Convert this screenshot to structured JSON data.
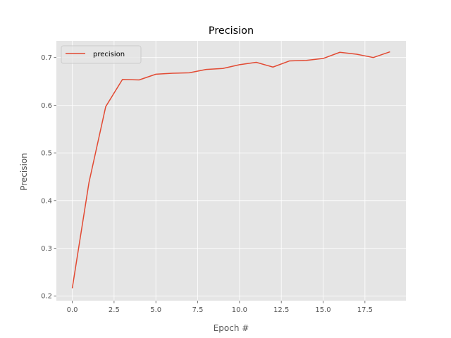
{
  "chart_data": {
    "type": "line",
    "title": "Precision",
    "xlabel": "Epoch #",
    "ylabel": "Precision",
    "xlim": [
      -0.95,
      19.95
    ],
    "ylim": [
      0.19,
      0.735
    ],
    "xticks": [
      0,
      2.5,
      5,
      7.5,
      10,
      12.5,
      15,
      17.5
    ],
    "xtick_labels": [
      "0.0",
      "2.5",
      "5.0",
      "7.5",
      "10.0",
      "12.5",
      "15.0",
      "17.5"
    ],
    "yticks": [
      0.2,
      0.3,
      0.4,
      0.5,
      0.6,
      0.7
    ],
    "ytick_labels": [
      "0.2",
      "0.3",
      "0.4",
      "0.5",
      "0.6",
      "0.7"
    ],
    "grid": true,
    "legend_position": "top-left",
    "series": [
      {
        "name": "precision",
        "color": "#E24A33",
        "x": [
          0,
          1,
          2,
          3,
          4,
          5,
          6,
          7,
          8,
          9,
          10,
          11,
          12,
          13,
          14,
          15,
          16,
          17,
          18,
          19
        ],
        "y": [
          0.216,
          0.438,
          0.597,
          0.654,
          0.653,
          0.665,
          0.667,
          0.668,
          0.675,
          0.677,
          0.685,
          0.69,
          0.68,
          0.693,
          0.694,
          0.698,
          0.711,
          0.707,
          0.7,
          0.712
        ]
      }
    ],
    "style": {
      "plot_background": "#E5E5E5",
      "grid_color": "#FFFFFF",
      "tick_color": "#555555"
    }
  }
}
